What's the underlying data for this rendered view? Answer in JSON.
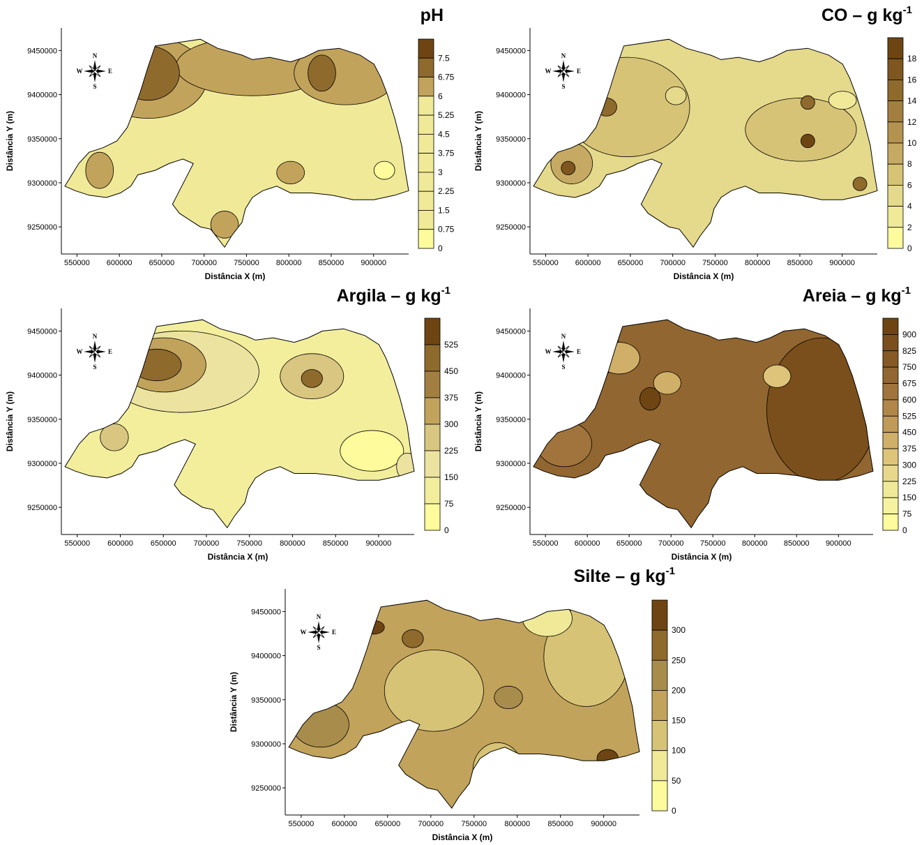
{
  "panels": [
    {
      "id": "ph",
      "title": "pH",
      "unit_prefix": "",
      "unit_exp": "",
      "legend_ticks": [
        "7.5",
        "6.75",
        "6",
        "5.25",
        "4.5",
        "3.75",
        "3",
        "2.25",
        "1.5",
        "0.75",
        "0"
      ],
      "legend_colors": [
        "#6e4512",
        "#8f6a2d",
        "#c2a35b",
        "#f0e998",
        "#f0e998",
        "#f0e998",
        "#f0e998",
        "#f0e998",
        "#f0e998",
        "#f0e998",
        "#fdfb9b"
      ],
      "x_ticks": [
        "550000",
        "600000",
        "650000",
        "700000",
        "750000",
        "800000",
        "850000",
        "900000"
      ],
      "y_ticks": [
        "9450000",
        "9400000",
        "9350000",
        "9300000",
        "9250000"
      ],
      "xlabel": "Distância X (m)",
      "ylabel": "Distância Y (m)",
      "base_color": "#f0e998",
      "blobs": [
        {
          "cx": 0.25,
          "cy": 0.22,
          "rx": 0.17,
          "ry": 0.18,
          "color": "#c2a35b"
        },
        {
          "cx": 0.55,
          "cy": 0.17,
          "rx": 0.22,
          "ry": 0.13,
          "color": "#c2a35b"
        },
        {
          "cx": 0.82,
          "cy": 0.2,
          "rx": 0.15,
          "ry": 0.14,
          "color": "#c2a35b"
        },
        {
          "cx": 0.25,
          "cy": 0.2,
          "rx": 0.09,
          "ry": 0.12,
          "color": "#8f6a2d"
        },
        {
          "cx": 0.75,
          "cy": 0.2,
          "rx": 0.04,
          "ry": 0.08,
          "color": "#8f6a2d"
        },
        {
          "cx": 0.11,
          "cy": 0.63,
          "rx": 0.04,
          "ry": 0.08,
          "color": "#c2a35b"
        },
        {
          "cx": 0.66,
          "cy": 0.64,
          "rx": 0.04,
          "ry": 0.05,
          "color": "#c2a35b"
        },
        {
          "cx": 0.47,
          "cy": 0.87,
          "rx": 0.04,
          "ry": 0.06,
          "color": "#c2a35b"
        },
        {
          "cx": 0.93,
          "cy": 0.63,
          "rx": 0.03,
          "ry": 0.04,
          "color": "#fdfb9b"
        }
      ]
    },
    {
      "id": "co",
      "title": "CO – g kg",
      "unit_prefix": "",
      "unit_exp": "-1",
      "legend_ticks": [
        "18",
        "16",
        "14",
        "12",
        "10",
        "8",
        "6",
        "4",
        "2",
        "0"
      ],
      "legend_colors": [
        "#6e4512",
        "#7f5620",
        "#8f6a2d",
        "#a27f41",
        "#b49350",
        "#c6aa63",
        "#d7c376",
        "#e5d98b",
        "#f0e998",
        "#fdfb9b"
      ],
      "x_ticks": [
        "550000",
        "600000",
        "650000",
        "700000",
        "750000",
        "800000",
        "850000",
        "900000"
      ],
      "y_ticks": [
        "9450000",
        "9400000",
        "9350000",
        "9300000",
        "9250000"
      ],
      "xlabel": "Distância X (m)",
      "ylabel": "Distância Y (m)",
      "base_color": "#e5d98b",
      "blobs": [
        {
          "cx": 0.28,
          "cy": 0.35,
          "rx": 0.18,
          "ry": 0.22,
          "color": "#d7c376"
        },
        {
          "cx": 0.12,
          "cy": 0.6,
          "rx": 0.06,
          "ry": 0.09,
          "color": "#c6aa63"
        },
        {
          "cx": 0.2,
          "cy": 0.12,
          "rx": 0.05,
          "ry": 0.12,
          "color": "#c6aa63"
        },
        {
          "cx": 0.78,
          "cy": 0.45,
          "rx": 0.16,
          "ry": 0.14,
          "color": "#d7c376"
        },
        {
          "cx": 0.22,
          "cy": 0.35,
          "rx": 0.03,
          "ry": 0.04,
          "color": "#8f6a2d"
        },
        {
          "cx": 0.11,
          "cy": 0.62,
          "rx": 0.02,
          "ry": 0.03,
          "color": "#7f5620"
        },
        {
          "cx": 0.8,
          "cy": 0.5,
          "rx": 0.02,
          "ry": 0.03,
          "color": "#6e4512"
        },
        {
          "cx": 0.8,
          "cy": 0.33,
          "rx": 0.02,
          "ry": 0.03,
          "color": "#8f6a2d"
        },
        {
          "cx": 0.95,
          "cy": 0.69,
          "rx": 0.02,
          "ry": 0.03,
          "color": "#8f6a2d"
        },
        {
          "cx": 0.42,
          "cy": 0.3,
          "rx": 0.03,
          "ry": 0.04,
          "color": "#e5d98b"
        },
        {
          "cx": 0.9,
          "cy": 0.32,
          "rx": 0.04,
          "ry": 0.04,
          "color": "#f0e998"
        }
      ]
    },
    {
      "id": "argila",
      "title": "Argila – g kg",
      "unit_prefix": "",
      "unit_exp": "-1",
      "legend_ticks": [
        "525",
        "450",
        "375",
        "300",
        "225",
        "150",
        "75",
        "0"
      ],
      "legend_colors": [
        "#6e4512",
        "#8f6a2d",
        "#a27f41",
        "#c2a35b",
        "#d9c680",
        "#ece3a0",
        "#f3ee9c",
        "#fdfb9b"
      ],
      "x_ticks": [
        "550000",
        "600000",
        "650000",
        "700000",
        "750000",
        "800000",
        "850000",
        "900000"
      ],
      "y_ticks": [
        "9450000",
        "9400000",
        "9350000",
        "9300000",
        "9250000"
      ],
      "xlabel": "Distância X (m)",
      "ylabel": "Distância Y (m)",
      "base_color": "#f3ee9c",
      "blobs": [
        {
          "cx": 0.34,
          "cy": 0.28,
          "rx": 0.22,
          "ry": 0.18,
          "color": "#ece3a0"
        },
        {
          "cx": 0.29,
          "cy": 0.25,
          "rx": 0.12,
          "ry": 0.12,
          "color": "#c2a35b"
        },
        {
          "cx": 0.27,
          "cy": 0.25,
          "rx": 0.07,
          "ry": 0.07,
          "color": "#8f6a2d"
        },
        {
          "cx": 0.71,
          "cy": 0.3,
          "rx": 0.09,
          "ry": 0.1,
          "color": "#d9c680"
        },
        {
          "cx": 0.71,
          "cy": 0.31,
          "rx": 0.03,
          "ry": 0.04,
          "color": "#8f6a2d"
        },
        {
          "cx": 0.15,
          "cy": 0.57,
          "rx": 0.04,
          "ry": 0.06,
          "color": "#d9c680"
        },
        {
          "cx": 0.88,
          "cy": 0.63,
          "rx": 0.09,
          "ry": 0.09,
          "color": "#fdfb9b"
        },
        {
          "cx": 0.98,
          "cy": 0.7,
          "rx": 0.03,
          "ry": 0.06,
          "color": "#ece3a0"
        }
      ]
    },
    {
      "id": "areia",
      "title": "Areia – g kg",
      "unit_prefix": "",
      "unit_exp": "-1",
      "legend_ticks": [
        "900",
        "825",
        "750",
        "675",
        "600",
        "525",
        "450",
        "375",
        "300",
        "225",
        "150",
        "75",
        "0"
      ],
      "legend_colors": [
        "#6e4512",
        "#7a4f1b",
        "#855a25",
        "#916630",
        "#a0743c",
        "#b08649",
        "#c09a58",
        "#d0af68",
        "#dec47a",
        "#e8d88c",
        "#f0e998",
        "#f6f29e",
        "#fdfb9b"
      ],
      "x_ticks": [
        "550000",
        "600000",
        "650000",
        "700000",
        "750000",
        "800000",
        "850000",
        "900000"
      ],
      "y_ticks": [
        "9450000",
        "9400000",
        "9350000",
        "9300000",
        "9250000"
      ],
      "xlabel": "Distância X (m)",
      "ylabel": "Distância Y (m)",
      "base_color": "#916630",
      "blobs": [
        {
          "cx": 0.85,
          "cy": 0.45,
          "rx": 0.16,
          "ry": 0.32,
          "color": "#7a4f1b"
        },
        {
          "cx": 0.2,
          "cy": 0.18,
          "rx": 0.06,
          "ry": 0.12,
          "color": "#7a4f1b"
        },
        {
          "cx": 0.26,
          "cy": 0.22,
          "rx": 0.06,
          "ry": 0.07,
          "color": "#d0af68"
        },
        {
          "cx": 0.17,
          "cy": 0.26,
          "rx": 0.04,
          "ry": 0.05,
          "color": "#c09a58"
        },
        {
          "cx": 0.4,
          "cy": 0.33,
          "rx": 0.04,
          "ry": 0.05,
          "color": "#d0af68"
        },
        {
          "cx": 0.72,
          "cy": 0.3,
          "rx": 0.04,
          "ry": 0.05,
          "color": "#dec47a"
        },
        {
          "cx": 0.35,
          "cy": 0.4,
          "rx": 0.03,
          "ry": 0.05,
          "color": "#6e4512"
        },
        {
          "cx": 0.9,
          "cy": 0.8,
          "rx": 0.04,
          "ry": 0.04,
          "color": "#c09a58"
        },
        {
          "cx": 0.1,
          "cy": 0.6,
          "rx": 0.08,
          "ry": 0.1,
          "color": "#a0743c"
        }
      ]
    },
    {
      "id": "silte",
      "title": "Silte – g kg",
      "unit_prefix": "",
      "unit_exp": "-1",
      "legend_ticks": [
        "300",
        "250",
        "200",
        "150",
        "100",
        "50",
        "0"
      ],
      "legend_colors": [
        "#6e4512",
        "#8f6a2d",
        "#a88c4b",
        "#c2a35b",
        "#d7c376",
        "#f0e998",
        "#fdfb9b"
      ],
      "x_ticks": [
        "550000",
        "600000",
        "650000",
        "700000",
        "750000",
        "800000",
        "850000",
        "900000"
      ],
      "y_ticks": [
        "9450000",
        "9400000",
        "9350000",
        "9300000",
        "9250000"
      ],
      "xlabel": "Distância X (m)",
      "ylabel": "Distância Y (m)",
      "base_color": "#c2a35b",
      "blobs": [
        {
          "cx": 0.85,
          "cy": 0.3,
          "rx": 0.12,
          "ry": 0.22,
          "color": "#d7c376"
        },
        {
          "cx": 0.74,
          "cy": 0.13,
          "rx": 0.07,
          "ry": 0.08,
          "color": "#f0e998"
        },
        {
          "cx": 0.42,
          "cy": 0.45,
          "rx": 0.14,
          "ry": 0.18,
          "color": "#d7c376"
        },
        {
          "cx": 0.6,
          "cy": 0.8,
          "rx": 0.07,
          "ry": 0.12,
          "color": "#d7c376"
        },
        {
          "cx": 0.36,
          "cy": 0.22,
          "rx": 0.03,
          "ry": 0.04,
          "color": "#8f6a2d"
        },
        {
          "cx": 0.63,
          "cy": 0.48,
          "rx": 0.04,
          "ry": 0.05,
          "color": "#a88c4b"
        },
        {
          "cx": 0.25,
          "cy": 0.17,
          "rx": 0.03,
          "ry": 0.03,
          "color": "#6e4512"
        },
        {
          "cx": 0.91,
          "cy": 0.75,
          "rx": 0.03,
          "ry": 0.04,
          "color": "#6e4512"
        },
        {
          "cx": 0.1,
          "cy": 0.6,
          "rx": 0.08,
          "ry": 0.1,
          "color": "#a88c4b"
        }
      ]
    }
  ],
  "compass": {
    "n": "N",
    "s": "S",
    "e": "E",
    "w": "W"
  }
}
